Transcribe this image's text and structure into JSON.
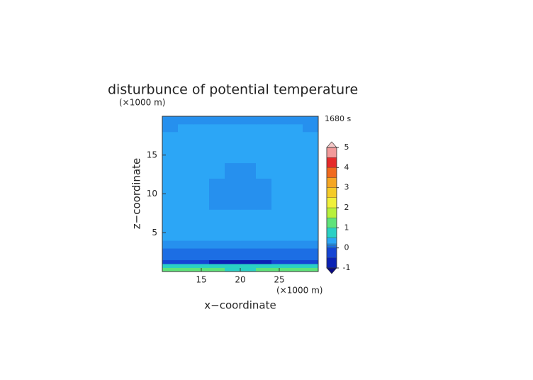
{
  "chart_data": {
    "type": "contour",
    "title": "disturbunce of potential temperature",
    "time_label": "1680 s",
    "x_label": "x−coordinate",
    "y_label": "z−coordinate",
    "x_unit": "(×1000 m)",
    "y_unit": "(×1000 m)",
    "xlim": [
      10,
      30
    ],
    "ylim": [
      0,
      20
    ],
    "xticks": [
      15,
      20,
      25
    ],
    "yticks": [
      5,
      10,
      15
    ],
    "x_edges": [
      10,
      12,
      14,
      16,
      18,
      20,
      22,
      24,
      26,
      28,
      30
    ],
    "y_edges": [
      0,
      0.5,
      1,
      1.5,
      2,
      3,
      4,
      6,
      8,
      9,
      11,
      12,
      14,
      16,
      18,
      19,
      20
    ],
    "z": [
      [
        1.2,
        1.2,
        1.2,
        1.2,
        0.8,
        0.8,
        1.2,
        1.2,
        1.2,
        1.2
      ],
      [
        0.6,
        0.6,
        0.6,
        0.6,
        0.6,
        0.6,
        0.6,
        0.6,
        0.6,
        0.6
      ],
      [
        -0.2,
        -0.2,
        -0.3,
        -0.6,
        -0.7,
        -0.7,
        -0.6,
        -0.3,
        -0.2,
        -0.2
      ],
      [
        0.05,
        0.05,
        0.05,
        0.05,
        0.05,
        0.05,
        0.05,
        0.05,
        0.05,
        0.05
      ],
      [
        0.05,
        0.05,
        0.05,
        0.05,
        0.05,
        0.05,
        0.05,
        0.05,
        0.05,
        0.05
      ],
      [
        0.15,
        0.15,
        0.15,
        0.15,
        0.15,
        0.15,
        0.15,
        0.15,
        0.15,
        0.15
      ],
      [
        0.3,
        0.3,
        0.3,
        0.3,
        0.3,
        0.3,
        0.3,
        0.3,
        0.3,
        0.3
      ],
      [
        0.3,
        0.3,
        0.3,
        0.3,
        0.3,
        0.3,
        0.3,
        0.3,
        0.3,
        0.3
      ],
      [
        0.3,
        0.3,
        0.3,
        0.15,
        0.15,
        0.15,
        0.15,
        0.3,
        0.3,
        0.3
      ],
      [
        0.3,
        0.3,
        0.3,
        0.15,
        0.15,
        0.15,
        0.15,
        0.3,
        0.3,
        0.3
      ],
      [
        0.3,
        0.3,
        0.3,
        0.15,
        0.15,
        0.15,
        0.15,
        0.3,
        0.3,
        0.3
      ],
      [
        0.3,
        0.3,
        0.3,
        0.3,
        0.15,
        0.15,
        0.3,
        0.3,
        0.3,
        0.3
      ],
      [
        0.3,
        0.3,
        0.3,
        0.3,
        0.3,
        0.3,
        0.3,
        0.3,
        0.3,
        0.3
      ],
      [
        0.3,
        0.3,
        0.3,
        0.3,
        0.3,
        0.3,
        0.3,
        0.3,
        0.3,
        0.3
      ],
      [
        0.15,
        0.3,
        0.3,
        0.3,
        0.3,
        0.3,
        0.3,
        0.3,
        0.3,
        0.15
      ],
      [
        0.15,
        0.15,
        0.15,
        0.15,
        0.15,
        0.15,
        0.15,
        0.15,
        0.15,
        0.15
      ]
    ],
    "levels": [
      -1,
      -0.5,
      0,
      0.1,
      0.2,
      0.5,
      1,
      1.5,
      2,
      2.5,
      3,
      3.5,
      4,
      4.5,
      5
    ],
    "colors": [
      "#0b22b4",
      "#1545d4",
      "#1c6ee4",
      "#2690ee",
      "#2ca6f6",
      "#2ad0c4",
      "#5fe37a",
      "#b8f03c",
      "#f0f03a",
      "#f5cb28",
      "#f5a623",
      "#f06a1e",
      "#e52a2a",
      "#f29a9a"
    ],
    "under_color": "#0a0a80",
    "over_color": "#f5c8c8",
    "colorbar_ticks": [
      -1,
      0,
      1,
      2,
      3,
      4,
      5
    ]
  }
}
